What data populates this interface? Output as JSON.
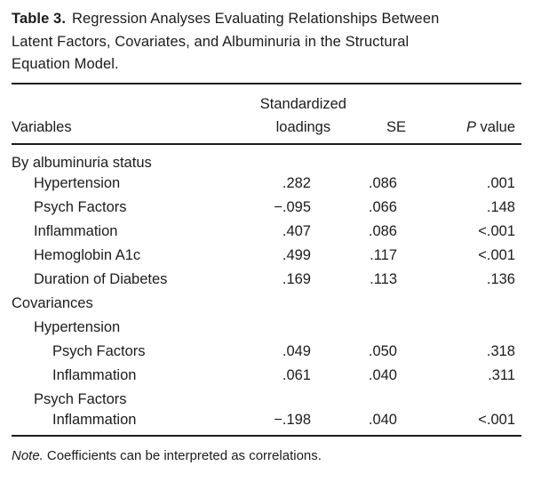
{
  "colors": {
    "background": "#ffffff",
    "text": "#1c1c1c",
    "rule": "#1c1c1c"
  },
  "paper_table": {
    "title": {
      "label": "Table 3.",
      "line1": "Regression Analyses Evaluating Relationships Between",
      "line2": "Latent Factors, Covariates, and Albuminuria in the Structural",
      "line3": "Equation Model."
    },
    "header": {
      "variables": "Variables",
      "loadings_line1": "Standardized",
      "loadings_line2": "loadings",
      "se": "SE",
      "p_italic": "P",
      "p_rest": " value"
    },
    "rows": [
      {
        "label": "By albuminuria status",
        "indent": 0,
        "loading": "",
        "se": "",
        "p": ""
      },
      {
        "label": "Hypertension",
        "indent": 1,
        "loading": ".282",
        "se": ".086",
        "p": ".001"
      },
      {
        "label": "Psych Factors",
        "indent": 1,
        "loading": "−.095",
        "se": ".066",
        "p": ".148"
      },
      {
        "label": "Inflammation",
        "indent": 1,
        "loading": ".407",
        "se": ".086",
        "p": "<.001"
      },
      {
        "label": "Hemoglobin A1c",
        "indent": 1,
        "loading": ".499",
        "se": ".117",
        "p": "<.001"
      },
      {
        "label": "Duration of Diabetes",
        "indent": 1,
        "loading": ".169",
        "se": ".113",
        "p": ".136"
      },
      {
        "label": "Covariances",
        "indent": 0,
        "loading": "",
        "se": "",
        "p": ""
      },
      {
        "label": "Hypertension",
        "indent": 1,
        "loading": "",
        "se": "",
        "p": ""
      },
      {
        "label": "Psych Factors",
        "indent": 2,
        "loading": ".049",
        "se": ".050",
        "p": ".318"
      },
      {
        "label": "Inflammation",
        "indent": 2,
        "loading": ".061",
        "se": ".040",
        "p": ".311"
      },
      {
        "label": "Psych Factors",
        "indent": 1,
        "loading": "",
        "se": "",
        "p": ""
      },
      {
        "label": "Inflammation",
        "indent": 2,
        "loading": "−.198",
        "se": ".040",
        "p": "<.001"
      }
    ],
    "note": {
      "label": "Note.",
      "text": "Coefficients can be interpreted as correlations."
    }
  }
}
